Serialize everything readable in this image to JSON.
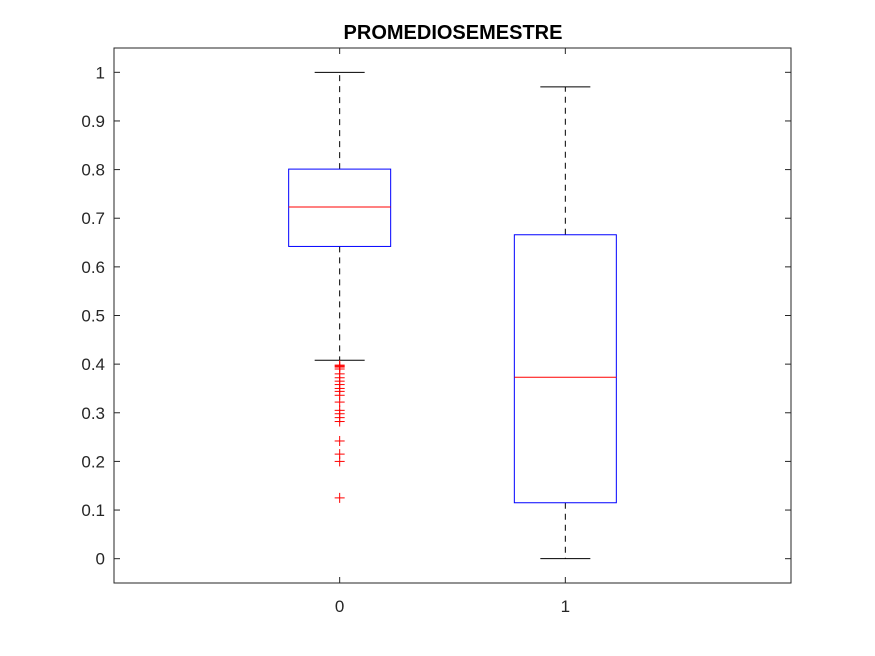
{
  "chart_data": {
    "type": "boxplot",
    "title": "PROMEDIOSEMESTRE",
    "xlabel": "",
    "ylabel": "",
    "categories": [
      "0",
      "1"
    ],
    "ylim": [
      -0.05,
      1.05
    ],
    "yticks": [
      0,
      0.1,
      0.2,
      0.3,
      0.4,
      0.5,
      0.6,
      0.7,
      0.8,
      0.9,
      1
    ],
    "ytick_labels": [
      "0",
      "0.1",
      "0.2",
      "0.3",
      "0.4",
      "0.5",
      "0.6",
      "0.7",
      "0.8",
      "0.9",
      "1"
    ],
    "grid": false,
    "boxes": [
      {
        "category": "0",
        "whisker_low": 0.408,
        "q1": 0.642,
        "median": 0.723,
        "q3": 0.801,
        "whisker_high": 1.0,
        "outliers": [
          0.398,
          0.396,
          0.394,
          0.39,
          0.38,
          0.372,
          0.365,
          0.358,
          0.35,
          0.344,
          0.336,
          0.322,
          0.305,
          0.298,
          0.29,
          0.282,
          0.242,
          0.215,
          0.2,
          0.125
        ]
      },
      {
        "category": "1",
        "whisker_low": 0.0,
        "q1": 0.115,
        "median": 0.373,
        "q3": 0.666,
        "whisker_high": 0.97,
        "outliers": []
      }
    ],
    "colors": {
      "box": "#0000ff",
      "median": "#ff0000",
      "whisker": "#000000",
      "outlier": "#ff0000",
      "axis": "#262626"
    }
  }
}
